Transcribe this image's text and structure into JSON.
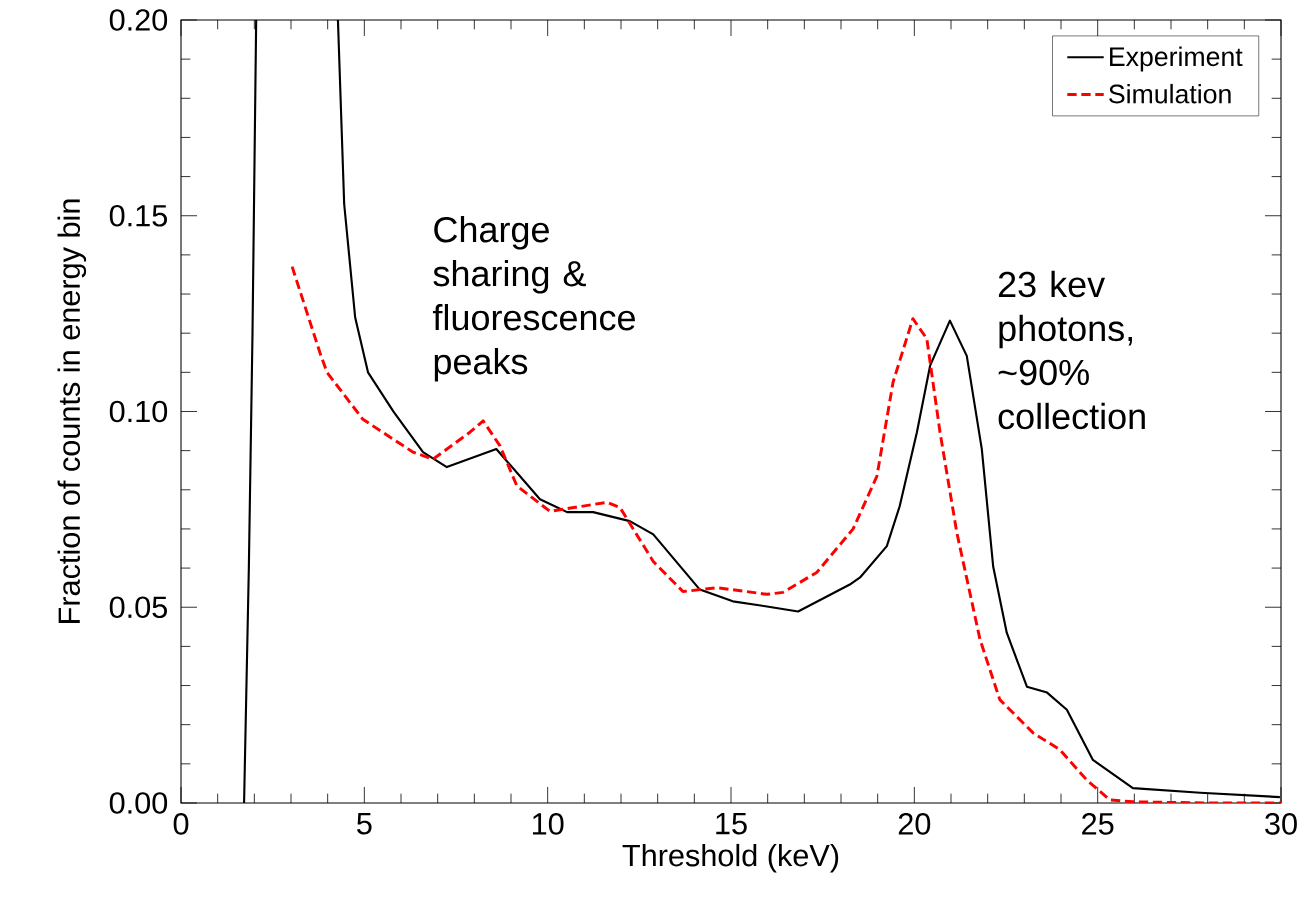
{
  "chart_data": {
    "type": "line",
    "xlabel": "Threshold (keV)",
    "ylabel": "Fraction of counts in energy bin",
    "xlim": [
      0,
      30
    ],
    "ylim": [
      0,
      0.2
    ],
    "xticks": [
      0,
      5,
      10,
      15,
      20,
      25,
      30
    ],
    "yticks": [
      {
        "value": 0,
        "label": "0.00"
      },
      {
        "value": 0.05,
        "label": "0.05"
      },
      {
        "value": 0.1,
        "label": "0.10"
      },
      {
        "value": 0.15,
        "label": "0.15"
      },
      {
        "value": 0.2,
        "label": "0.20"
      }
    ],
    "grid": false,
    "legend": "top right",
    "annotations": [
      "Charge sharing & fluorescence peaks",
      "23 kev photons, ~90% collection"
    ],
    "series": [
      {
        "name": "Experiment",
        "color": "#000000",
        "line_style": "solid",
        "x": [
          1.72,
          1.85,
          1.95,
          2.05,
          3.0,
          4.28,
          4.45,
          4.75,
          5.1,
          5.8,
          6.6,
          7.25,
          8.6,
          9.79,
          10.53,
          11.24,
          12.24,
          12.88,
          14.15,
          15.05,
          15.98,
          16.83,
          18.24,
          18.52,
          19.25,
          19.6,
          20.07,
          20.43,
          20.97,
          21.43,
          21.84,
          22.15,
          22.52,
          23.07,
          23.62,
          24.16,
          24.87,
          25.96,
          27.8,
          29.97
        ],
        "values": [
          0,
          0.06,
          0.12,
          0.2,
          null,
          0.2,
          0.153,
          0.124,
          0.11,
          0.0999,
          0.0896,
          0.0858,
          0.0904,
          0.0776,
          0.0743,
          0.0743,
          0.072,
          0.0686,
          0.0545,
          0.0515,
          0.0502,
          0.0489,
          0.0558,
          0.0576,
          0.0656,
          0.0758,
          0.0947,
          0.1117,
          0.1232,
          0.1142,
          0.0904,
          0.0604,
          0.0435,
          0.0297,
          0.0282,
          0.0238,
          0.011,
          0.0038,
          0.0026,
          0.0015
        ]
      },
      {
        "name": "Simulation",
        "color": "#ff0000",
        "line_style": "dashed",
        "x": [
          3.03,
          3.79,
          3.98,
          4.96,
          6.33,
          6.87,
          7.88,
          8.24,
          8.7,
          9.16,
          10.06,
          11.62,
          11.97,
          12.88,
          13.69,
          14.62,
          15.98,
          16.42,
          17.34,
          18.33,
          18.98,
          19.42,
          19.96,
          20.34,
          20.7,
          21.16,
          21.79,
          22.33,
          23.24,
          23.97,
          24.7,
          25.33,
          25.96,
          28.0,
          30.0
        ],
        "values": [
          0.137,
          0.115,
          0.11,
          0.098,
          0.0896,
          0.0878,
          0.0947,
          0.0976,
          0.0912,
          0.081,
          0.0745,
          0.0768,
          0.0755,
          0.0617,
          0.054,
          0.055,
          0.0533,
          0.0538,
          0.0589,
          0.07,
          0.0835,
          0.1075,
          0.1237,
          0.1186,
          0.0947,
          0.069,
          0.0418,
          0.0264,
          0.0179,
          0.0136,
          0.0059,
          0.0008,
          0.0003,
          0,
          0
        ]
      }
    ]
  }
}
